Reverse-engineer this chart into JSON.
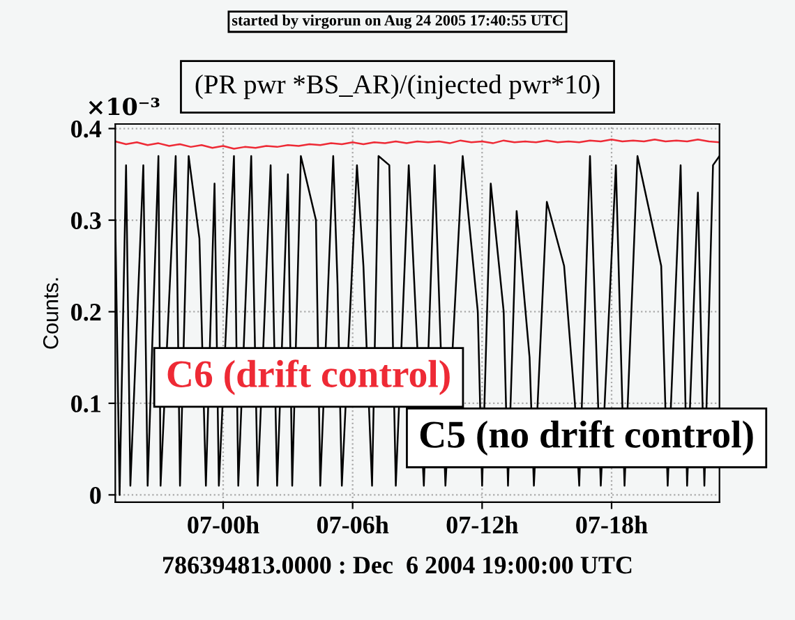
{
  "chart_data": {
    "type": "line",
    "title": "(PR pwr *BS_AR)/(injected pwr*10)",
    "ylabel": "Counts.",
    "annotations": [
      "started by virgorun on Aug 24 2005 17:40:55 UTC",
      "×10⁻³",
      "786394813.0000 : Dec  6 2004 19:00:00 UTC"
    ],
    "xlim": [
      "2004-12-06T19:00",
      "2004-12-07T23:00"
    ],
    "xticks": [
      {
        "value": "2004-12-07T00:00",
        "label": "07-00h"
      },
      {
        "value": "2004-12-07T06:00",
        "label": "07-06h"
      },
      {
        "value": "2004-12-07T12:00",
        "label": "07-12h"
      },
      {
        "value": "2004-12-07T18:00",
        "label": "07-18h"
      }
    ],
    "ylim": [
      -0.008,
      0.405
    ],
    "yticks": [
      0,
      0.1,
      0.2,
      0.3,
      0.4
    ],
    "grid": true,
    "legend": false,
    "marker": "none",
    "line_style": "solid",
    "series": [
      {
        "name": "C5 (no drift control)",
        "color": "#000000",
        "x": [
          "2004-12-06T19:00",
          "2004-12-06T19:12",
          "2004-12-06T19:30",
          "2004-12-06T19:42",
          "2004-12-06T20:18",
          "2004-12-06T20:30",
          "2004-12-06T21:00",
          "2004-12-06T21:06",
          "2004-12-06T21:48",
          "2004-12-06T22:00",
          "2004-12-06T22:24",
          "2004-12-06T22:54",
          "2004-12-06T23:12",
          "2004-12-06T23:36",
          "2004-12-06T23:48",
          "2004-12-07T00:30",
          "2004-12-07T00:42",
          "2004-12-07T01:18",
          "2004-12-07T01:36",
          "2004-12-07T02:12",
          "2004-12-07T02:30",
          "2004-12-07T03:00",
          "2004-12-07T03:12",
          "2004-12-07T03:36",
          "2004-12-07T04:18",
          "2004-12-07T04:30",
          "2004-12-07T05:06",
          "2004-12-07T05:18",
          "2004-12-07T05:30",
          "2004-12-07T06:12",
          "2004-12-07T06:30",
          "2004-12-07T06:54",
          "2004-12-07T07:12",
          "2004-12-07T07:42",
          "2004-12-07T08:00",
          "2004-12-07T08:36",
          "2004-12-07T09:18",
          "2004-12-07T09:48",
          "2004-12-07T10:18",
          "2004-12-07T11:06",
          "2004-12-07T11:48",
          "2004-12-07T12:00",
          "2004-12-07T12:24",
          "2004-12-07T13:00",
          "2004-12-07T13:12",
          "2004-12-07T13:36",
          "2004-12-07T14:12",
          "2004-12-07T14:24",
          "2004-12-07T15:00",
          "2004-12-07T15:48",
          "2004-12-07T16:18",
          "2004-12-07T16:30",
          "2004-12-07T17:00",
          "2004-12-07T17:30",
          "2004-12-07T18:12",
          "2004-12-07T18:36",
          "2004-12-07T19:12",
          "2004-12-07T20:18",
          "2004-12-07T20:36",
          "2004-12-07T21:12",
          "2004-12-07T21:30",
          "2004-12-07T22:00",
          "2004-12-07T22:18",
          "2004-12-07T22:42",
          "2004-12-07T23:00"
        ],
        "values": [
          0.3,
          0.0,
          0.36,
          0.01,
          0.36,
          0.01,
          0.37,
          0.01,
          0.37,
          0.01,
          0.37,
          0.28,
          0.01,
          0.34,
          0.01,
          0.37,
          0.01,
          0.37,
          0.01,
          0.36,
          0.01,
          0.35,
          0.01,
          0.37,
          0.3,
          0.01,
          0.37,
          0.23,
          0.01,
          0.36,
          0.25,
          0.01,
          0.37,
          0.36,
          0.01,
          0.36,
          0.01,
          0.36,
          0.01,
          0.37,
          0.2,
          0.01,
          0.34,
          0.2,
          0.01,
          0.31,
          0.15,
          0.01,
          0.32,
          0.25,
          0.1,
          0.01,
          0.37,
          0.01,
          0.36,
          0.01,
          0.37,
          0.25,
          0.01,
          0.36,
          0.01,
          0.33,
          0.01,
          0.36,
          0.37
        ]
      },
      {
        "name": "C6 (drift control)",
        "color": "#ee2a35",
        "x": [
          "2004-12-06T19:00",
          "2004-12-06T19:30",
          "2004-12-06T20:00",
          "2004-12-06T20:30",
          "2004-12-06T21:00",
          "2004-12-06T21:30",
          "2004-12-06T22:00",
          "2004-12-06T22:30",
          "2004-12-06T23:00",
          "2004-12-06T23:30",
          "2004-12-07T00:00",
          "2004-12-07T00:30",
          "2004-12-07T01:00",
          "2004-12-07T01:30",
          "2004-12-07T02:00",
          "2004-12-07T02:30",
          "2004-12-07T03:00",
          "2004-12-07T03:30",
          "2004-12-07T04:00",
          "2004-12-07T04:30",
          "2004-12-07T05:00",
          "2004-12-07T05:30",
          "2004-12-07T06:00",
          "2004-12-07T06:30",
          "2004-12-07T07:00",
          "2004-12-07T07:30",
          "2004-12-07T08:00",
          "2004-12-07T08:30",
          "2004-12-07T09:00",
          "2004-12-07T09:30",
          "2004-12-07T10:00",
          "2004-12-07T10:30",
          "2004-12-07T11:00",
          "2004-12-07T11:30",
          "2004-12-07T12:00",
          "2004-12-07T12:30",
          "2004-12-07T13:00",
          "2004-12-07T13:30",
          "2004-12-07T14:00",
          "2004-12-07T14:30",
          "2004-12-07T15:00",
          "2004-12-07T15:30",
          "2004-12-07T16:00",
          "2004-12-07T16:30",
          "2004-12-07T17:00",
          "2004-12-07T17:30",
          "2004-12-07T18:00",
          "2004-12-07T18:30",
          "2004-12-07T19:00",
          "2004-12-07T19:30",
          "2004-12-07T20:00",
          "2004-12-07T20:30",
          "2004-12-07T21:00",
          "2004-12-07T21:30",
          "2004-12-07T22:00",
          "2004-12-07T22:30",
          "2004-12-07T23:00"
        ],
        "values": [
          0.386,
          0.383,
          0.385,
          0.382,
          0.384,
          0.381,
          0.383,
          0.38,
          0.382,
          0.379,
          0.381,
          0.378,
          0.38,
          0.379,
          0.381,
          0.38,
          0.382,
          0.381,
          0.383,
          0.382,
          0.384,
          0.383,
          0.385,
          0.383,
          0.385,
          0.384,
          0.386,
          0.384,
          0.386,
          0.385,
          0.386,
          0.384,
          0.387,
          0.385,
          0.386,
          0.384,
          0.387,
          0.385,
          0.386,
          0.385,
          0.387,
          0.385,
          0.386,
          0.385,
          0.387,
          0.386,
          0.388,
          0.386,
          0.387,
          0.386,
          0.388,
          0.386,
          0.387,
          0.386,
          0.388,
          0.386,
          0.385
        ]
      }
    ]
  }
}
